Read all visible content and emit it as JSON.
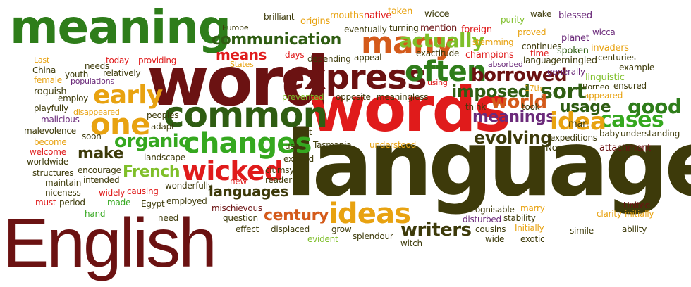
{
  "cloud": {
    "words": [
      {
        "id": "meaning",
        "text": "meaning",
        "color": "#2e7d1a"
      },
      {
        "id": "word",
        "text": "word",
        "color": "#6b1212"
      },
      {
        "id": "words",
        "text": "words",
        "color": "#e01b1b"
      },
      {
        "id": "language",
        "text": "language",
        "color": "#3d3a0a"
      },
      {
        "id": "english",
        "text": "English",
        "color": "#6b1212"
      },
      {
        "id": "express",
        "text": "express",
        "color": "#6b1212"
      },
      {
        "id": "common",
        "text": "common",
        "color": "#2f5d12"
      },
      {
        "id": "many",
        "text": "many",
        "color": "#d45a1a"
      },
      {
        "id": "often",
        "text": "often",
        "color": "#2e7d1a"
      },
      {
        "id": "changes",
        "text": "changes",
        "color": "#35a81f"
      },
      {
        "id": "wicked",
        "text": "wicked",
        "color": "#e01b1b"
      },
      {
        "id": "ideas",
        "text": "ideas",
        "color": "#e8a210"
      },
      {
        "id": "one",
        "text": "one",
        "color": "#e8a210"
      },
      {
        "id": "early",
        "text": "early",
        "color": "#e8a210"
      },
      {
        "id": "communication",
        "text": "communication",
        "color": "#2f5d12"
      },
      {
        "id": "actually",
        "text": "actually",
        "color": "#7fbf2a"
      },
      {
        "id": "borrowed",
        "text": "borrowed",
        "color": "#6b1212"
      },
      {
        "id": "imposed",
        "text": "imposed",
        "color": "#2f5d12"
      },
      {
        "id": "sort",
        "text": "sort",
        "color": "#2f5d12"
      },
      {
        "id": "good",
        "text": "good",
        "color": "#2e7d1a"
      },
      {
        "id": "cases",
        "text": "cases",
        "color": "#35a81f"
      },
      {
        "id": "meanings",
        "text": "meanings",
        "color": "#6b2a7a"
      },
      {
        "id": "world",
        "text": "world",
        "color": "#d45a1a"
      },
      {
        "id": "usage",
        "text": "usage",
        "color": "#2f5d12"
      },
      {
        "id": "idea",
        "text": "idea",
        "color": "#e8a210"
      },
      {
        "id": "evolving",
        "text": "evolving",
        "color": "#3d3a0a"
      },
      {
        "id": "organic",
        "text": "organic",
        "color": "#35a81f"
      },
      {
        "id": "make",
        "text": "make",
        "color": "#3d3a0a"
      },
      {
        "id": "french",
        "text": "French",
        "color": "#7fbf2a"
      },
      {
        "id": "languages",
        "text": "languages",
        "color": "#3d3a0a"
      },
      {
        "id": "century",
        "text": "century",
        "color": "#d45a1a"
      },
      {
        "id": "writers",
        "text": "writers",
        "color": "#3d3a0a"
      },
      {
        "id": "means",
        "text": "means",
        "color": "#e01b1b"
      },
      {
        "id": "europe",
        "text": "Europe",
        "color": "#3d3a0a"
      },
      {
        "id": "brilliant",
        "text": "brilliant",
        "color": "#3d3a0a"
      },
      {
        "id": "origins",
        "text": "origins",
        "color": "#e8a210"
      },
      {
        "id": "mouths",
        "text": "mouths",
        "color": "#e8a210"
      },
      {
        "id": "native",
        "text": "native",
        "color": "#e01b1b"
      },
      {
        "id": "taken",
        "text": "taken",
        "color": "#e8a210"
      },
      {
        "id": "wicce",
        "text": "wicce",
        "color": "#3d3a0a"
      },
      {
        "id": "purity",
        "text": "purity",
        "color": "#7fbf2a"
      },
      {
        "id": "wake",
        "text": "wake",
        "color": "#3d3a0a"
      },
      {
        "id": "blessed",
        "text": "blessed",
        "color": "#6b2a7a"
      },
      {
        "id": "wicca",
        "text": "wicca",
        "color": "#6b2a7a"
      },
      {
        "id": "eventually",
        "text": "eventually",
        "color": "#3d3a0a"
      },
      {
        "id": "turning",
        "text": "turning",
        "color": "#3d3a0a"
      },
      {
        "id": "mention",
        "text": "mention",
        "color": "#6b1212"
      },
      {
        "id": "foreign",
        "text": "foreign",
        "color": "#e01b1b"
      },
      {
        "id": "proved",
        "text": "proved",
        "color": "#e8a210"
      },
      {
        "id": "planet",
        "text": "planet",
        "color": "#6b2a7a"
      },
      {
        "id": "stemming",
        "text": "stemming",
        "color": "#e8a210"
      },
      {
        "id": "continues",
        "text": "continues",
        "color": "#3d3a0a"
      },
      {
        "id": "invaders",
        "text": "invaders",
        "color": "#e8a210"
      },
      {
        "id": "last",
        "text": "Last",
        "color": "#e8a210"
      },
      {
        "id": "today",
        "text": "today",
        "color": "#e01b1b"
      },
      {
        "id": "providing",
        "text": "providing",
        "color": "#e01b1b"
      },
      {
        "id": "days",
        "text": "days",
        "color": "#e01b1b"
      },
      {
        "id": "depending",
        "text": "depending",
        "color": "#3d3a0a"
      },
      {
        "id": "appeal",
        "text": "appeal",
        "color": "#3d3a0a"
      },
      {
        "id": "exactitude",
        "text": "exactitude",
        "color": "#3d3a0a"
      },
      {
        "id": "champions",
        "text": "champions",
        "color": "#e01b1b"
      },
      {
        "id": "time",
        "text": "time",
        "color": "#e01b1b"
      },
      {
        "id": "spoken",
        "text": "spoken",
        "color": "#2f5d12"
      },
      {
        "id": "centuries",
        "text": "centuries",
        "color": "#3d3a0a"
      },
      {
        "id": "china",
        "text": "China",
        "color": "#3d3a0a"
      },
      {
        "id": "needs",
        "text": "needs",
        "color": "#3d3a0a"
      },
      {
        "id": "states",
        "text": "States",
        "color": "#e8a210"
      },
      {
        "id": "relatively",
        "text": "relatively",
        "color": "#3d3a0a"
      },
      {
        "id": "language_small",
        "text": "language",
        "color": "#3d3a0a"
      },
      {
        "id": "mingled",
        "text": "mingled",
        "color": "#3d3a0a"
      },
      {
        "id": "absorbed",
        "text": "absorbed",
        "color": "#6b2a7a"
      },
      {
        "id": "generally",
        "text": "generally",
        "color": "#6b2a7a"
      },
      {
        "id": "example",
        "text": "example",
        "color": "#3d3a0a"
      },
      {
        "id": "female",
        "text": "female",
        "color": "#e8a210"
      },
      {
        "id": "youth",
        "text": "youth",
        "color": "#3d3a0a"
      },
      {
        "id": "populations",
        "text": "populations",
        "color": "#6b2a7a"
      },
      {
        "id": "using",
        "text": "using",
        "color": "#e01b1b"
      },
      {
        "id": "17th",
        "text": "17th",
        "color": "#e8a210"
      },
      {
        "id": "linguistic",
        "text": "linguistic",
        "color": "#7fbf2a"
      },
      {
        "id": "borneo",
        "text": "Borneo",
        "color": "#3d3a0a"
      },
      {
        "id": "ensured",
        "text": "ensured",
        "color": "#3d3a0a"
      },
      {
        "id": "roguish",
        "text": "roguish",
        "color": "#3d3a0a"
      },
      {
        "id": "employ",
        "text": "employ",
        "color": "#3d3a0a"
      },
      {
        "id": "prevented",
        "text": "prevented",
        "color": "#7fbf2a"
      },
      {
        "id": "opposite",
        "text": "opposite",
        "color": "#3d3a0a"
      },
      {
        "id": "meaningless",
        "text": "meaningless",
        "color": "#3d3a0a"
      },
      {
        "id": "think",
        "text": "think",
        "color": "#3d3a0a"
      },
      {
        "id": "appeared",
        "text": "appeared",
        "color": "#e8a210"
      },
      {
        "id": "playfully",
        "text": "playfully",
        "color": "#3d3a0a"
      },
      {
        "id": "disappeared",
        "text": "disappeared",
        "color": "#e8a210"
      },
      {
        "id": "peoples",
        "text": "peoples",
        "color": "#3d3a0a"
      },
      {
        "id": "took",
        "text": "took",
        "color": "#3d3a0a"
      },
      {
        "id": "malicious",
        "text": "malicious",
        "color": "#6b2a7a"
      },
      {
        "id": "malevolence",
        "text": "malevolence",
        "color": "#3d3a0a"
      },
      {
        "id": "adapt",
        "text": "adapt",
        "color": "#3d3a0a"
      },
      {
        "id": "soon",
        "text": "soon",
        "color": "#3d3a0a"
      },
      {
        "id": "man",
        "text": "man",
        "color": "#3d3a0a"
      },
      {
        "id": "baby",
        "text": "baby",
        "color": "#3d3a0a"
      },
      {
        "id": "understanding",
        "text": "understanding",
        "color": "#3d3a0a"
      },
      {
        "id": "become",
        "text": "become",
        "color": "#e8a210"
      },
      {
        "id": "welcome",
        "text": "welcome",
        "color": "#e01b1b"
      },
      {
        "id": "worldwide",
        "text": "worldwide",
        "color": "#3d3a0a"
      },
      {
        "id": "use",
        "text": "use",
        "color": "#3d3a0a"
      },
      {
        "id": "vast",
        "text": "vast",
        "color": "#3d3a0a"
      },
      {
        "id": "tasmania",
        "text": "Tasmania",
        "color": "#3d3a0a"
      },
      {
        "id": "understood",
        "text": "understood",
        "color": "#e8a210"
      },
      {
        "id": "expeditions",
        "text": "expeditions",
        "color": "#3d3a0a"
      },
      {
        "id": "norse",
        "text": "Norse",
        "color": "#3d3a0a"
      },
      {
        "id": "attachment",
        "text": "attachment",
        "color": "#6b1212"
      },
      {
        "id": "structures",
        "text": "structures",
        "color": "#3d3a0a"
      },
      {
        "id": "landscape",
        "text": "landscape",
        "color": "#3d3a0a"
      },
      {
        "id": "expand",
        "text": "expand",
        "color": "#3d3a0a"
      },
      {
        "id": "maintain",
        "text": "maintain",
        "color": "#3d3a0a"
      },
      {
        "id": "encourage",
        "text": "encourage",
        "color": "#3d3a0a"
      },
      {
        "id": "clumsy",
        "text": "clumsy",
        "color": "#3d3a0a"
      },
      {
        "id": "niceness",
        "text": "niceness",
        "color": "#3d3a0a"
      },
      {
        "id": "intended",
        "text": "intended",
        "color": "#3d3a0a"
      },
      {
        "id": "reader",
        "text": "reader",
        "color": "#3d3a0a"
      },
      {
        "id": "must",
        "text": "must",
        "color": "#e01b1b"
      },
      {
        "id": "period",
        "text": "period",
        "color": "#3d3a0a"
      },
      {
        "id": "widely",
        "text": "widely",
        "color": "#e01b1b"
      },
      {
        "id": "causing",
        "text": "causing",
        "color": "#e01b1b"
      },
      {
        "id": "wonderfully",
        "text": "wonderfully",
        "color": "#3d3a0a"
      },
      {
        "id": "new",
        "text": "new",
        "color": "#e01b1b"
      },
      {
        "id": "made",
        "text": "made",
        "color": "#35a81f"
      },
      {
        "id": "hand",
        "text": "hand",
        "color": "#35a81f"
      },
      {
        "id": "egypt",
        "text": "Egypt",
        "color": "#3d3a0a"
      },
      {
        "id": "employed",
        "text": "employed",
        "color": "#3d3a0a"
      },
      {
        "id": "mischievous",
        "text": "mischievous",
        "color": "#6b1212"
      },
      {
        "id": "recognisable",
        "text": "recognisable",
        "color": "#3d3a0a"
      },
      {
        "id": "marry",
        "text": "marry",
        "color": "#e8a210"
      },
      {
        "id": "united",
        "text": "United",
        "color": "#6b1212"
      },
      {
        "id": "clarity",
        "text": "clarity",
        "color": "#e8a210"
      },
      {
        "id": "initially",
        "text": "initially",
        "color": "#e8a210"
      },
      {
        "id": "need",
        "text": "need",
        "color": "#3d3a0a"
      },
      {
        "id": "question",
        "text": "question",
        "color": "#3d3a0a"
      },
      {
        "id": "disturbed",
        "text": "disturbed",
        "color": "#6b2a7a"
      },
      {
        "id": "stability",
        "text": "stability",
        "color": "#3d3a0a"
      },
      {
        "id": "effect",
        "text": "effect",
        "color": "#3d3a0a"
      },
      {
        "id": "displaced",
        "text": "displaced",
        "color": "#3d3a0a"
      },
      {
        "id": "grow",
        "text": "grow",
        "color": "#3d3a0a"
      },
      {
        "id": "initially2",
        "text": "Initially",
        "color": "#e8a210"
      },
      {
        "id": "simile",
        "text": "simile",
        "color": "#3d3a0a"
      },
      {
        "id": "ability",
        "text": "ability",
        "color": "#3d3a0a"
      },
      {
        "id": "evident",
        "text": "evident",
        "color": "#7fbf2a"
      },
      {
        "id": "splendour",
        "text": "splendour",
        "color": "#3d3a0a"
      },
      {
        "id": "cousins",
        "text": "cousins",
        "color": "#3d3a0a"
      },
      {
        "id": "witch",
        "text": "witch",
        "color": "#3d3a0a"
      },
      {
        "id": "wide",
        "text": "wide",
        "color": "#3d3a0a"
      },
      {
        "id": "exotic",
        "text": "exotic",
        "color": "#3d3a0a"
      }
    ]
  }
}
